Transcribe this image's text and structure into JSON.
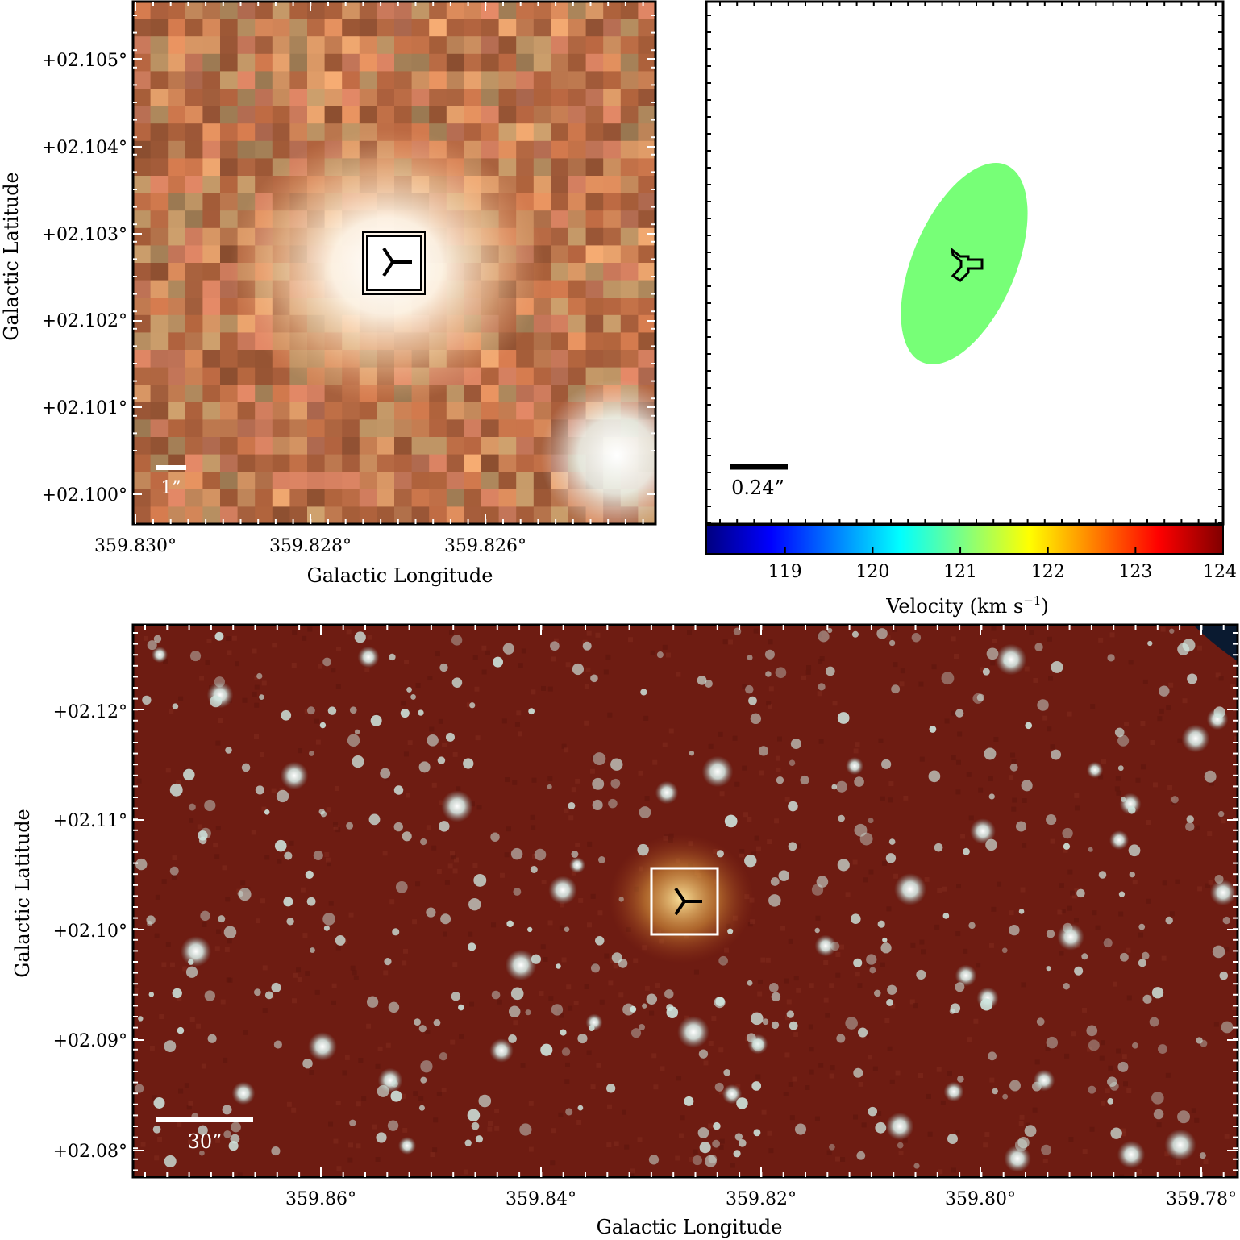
{
  "top_left": {
    "y_label": "Galactic Latitude",
    "x_label": "Galactic Longitude",
    "y_ticks": [
      "+02.105°",
      "+02.104°",
      "+02.103°",
      "+02.102°",
      "+02.101°",
      "+02.100°"
    ],
    "x_ticks": [
      "359.830°",
      "359.828°",
      "359.826°"
    ],
    "scale_bar_label": "1”"
  },
  "top_right": {
    "scale_bar_label": "0.24”",
    "colorbar_label": "Velocity (km s",
    "colorbar_label_exp": "−1",
    "colorbar_label_close": ")",
    "colorbar_ticks": [
      "119",
      "120",
      "121",
      "122",
      "123",
      "124"
    ],
    "colorbar_range": [
      118.1,
      124.0
    ],
    "ellipse_velocity": 121.0,
    "ellipse_color": "#77ff77",
    "colormap": [
      "#000080",
      "#0000ff",
      "#0080ff",
      "#00ffff",
      "#80ff80",
      "#ffff00",
      "#ff8000",
      "#ff0000",
      "#800000"
    ]
  },
  "bottom": {
    "y_label": "Galactic Latitude",
    "x_label": "Galactic Longitude",
    "y_ticks": [
      "+02.12°",
      "+02.11°",
      "+02.10°",
      "+02.09°",
      "+02.08°"
    ],
    "x_ticks": [
      "359.86°",
      "359.84°",
      "359.82°",
      "359.80°",
      "359.78°"
    ],
    "scale_bar_label": "30”",
    "background_color": "#6e1c12"
  }
}
